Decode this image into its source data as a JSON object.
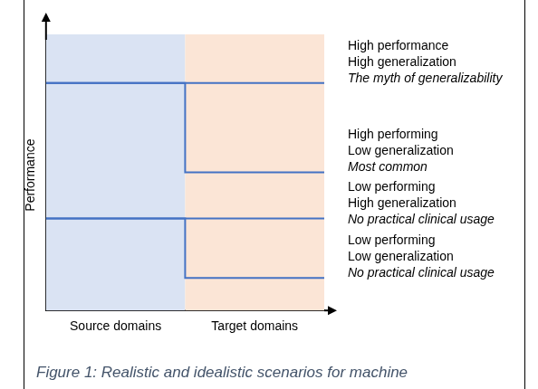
{
  "chart_data": {
    "type": "line",
    "categories": [
      "Source domains",
      "Target domains"
    ],
    "colors": [
      "#dae3f3",
      "#fbe5d6"
    ],
    "y_label": "Performance",
    "ylim": [
      0,
      100
    ],
    "tick_labels": "x",
    "grid": false,
    "line_style": "step",
    "caption": "Figure 1: Realistic and idealistic scenarios for machine",
    "series": [
      {
        "color": "#4472c4",
        "values": [
          84,
          84
        ],
        "annotation": [
          "High performance",
          "High generalization"
        ],
        "note": "The myth of generalizability"
      },
      {
        "color": "#4472c4",
        "values": [
          84,
          51
        ],
        "annotation": [
          "High performing",
          "Low generalization"
        ],
        "note": "Most common"
      },
      {
        "color": "#4472c4",
        "values": [
          34,
          34
        ],
        "annotation": [
          "Low performing",
          "High generalization"
        ],
        "note": "No practical clinical usage"
      },
      {
        "color": "#4472c4",
        "values": [
          34,
          12
        ],
        "annotation": [
          "Low performing",
          "Low generalization"
        ],
        "note": "No practical clinical usage"
      }
    ]
  }
}
